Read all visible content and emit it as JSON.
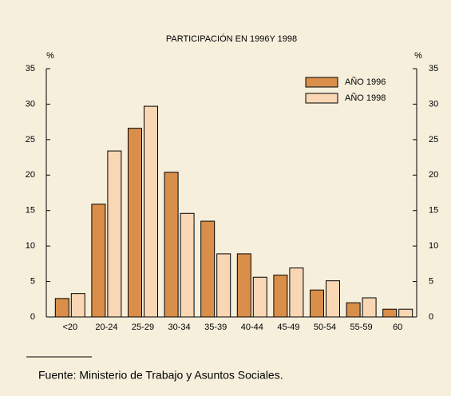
{
  "chart_data": {
    "type": "bar",
    "title": "PARTICIPACIÓN EN 1996Y 1998",
    "y_label": "%",
    "y2_label": "%",
    "categories": [
      "<20",
      "20-24",
      "25-29",
      "30-34",
      "35-39",
      "40-44",
      "45-49",
      "50-54",
      "55-59",
      "60"
    ],
    "series": [
      {
        "name": "AÑO 1996",
        "color": "#d98f4a",
        "values": [
          2.6,
          15.9,
          26.6,
          20.4,
          13.5,
          8.9,
          5.9,
          3.8,
          2.0,
          1.1
        ]
      },
      {
        "name": "AÑO 1998",
        "color": "#f9d6b4",
        "values": [
          3.3,
          23.4,
          29.7,
          14.6,
          8.9,
          5.6,
          6.9,
          5.1,
          2.7,
          1.1
        ]
      }
    ],
    "ylim": [
      0,
      35
    ],
    "yticks": [
      0,
      5,
      10,
      15,
      20,
      25,
      30,
      35
    ],
    "y2lim": [
      0,
      35
    ],
    "y2ticks": [
      0,
      5,
      10,
      15,
      20,
      25,
      30,
      35
    ],
    "legend": "top-right",
    "source": "Fuente:  Ministerio de Trabajo y Asuntos Sociales."
  }
}
